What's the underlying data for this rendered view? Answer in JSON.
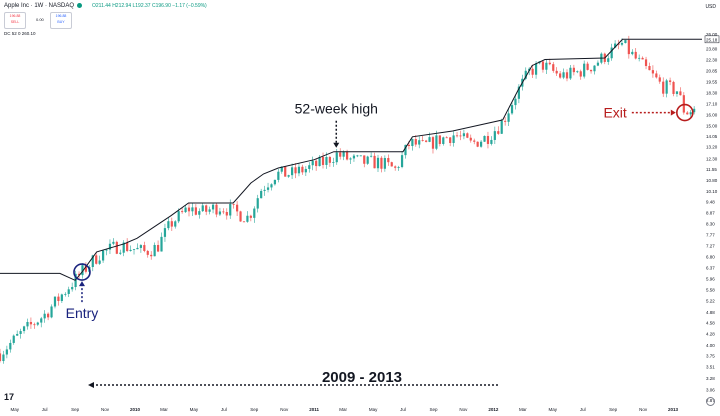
{
  "header": {
    "symbol": "Apple Inc · 1W · NASDAQ",
    "ohlc": "O211.44 H212.94 L192.37 C196.90 −1.17 (−0.59%)",
    "sell_price": "196.88",
    "sell_label": "SELL",
    "spread": "0.00",
    "buy_price": "196.88",
    "buy_label": "BUY",
    "indicator": "DC 52 0  260.10",
    "currency": "USD"
  },
  "branding": {
    "logo_text": "17"
  },
  "chart_data": {
    "type": "candlestick",
    "title": "",
    "x_ticks": [
      "May",
      "Jul",
      "Sep",
      "Nov",
      "2010",
      "Mar",
      "May",
      "Jul",
      "Sep",
      "Nov",
      "2011",
      "Mar",
      "May",
      "Jul",
      "Sep",
      "Nov",
      "2012",
      "Mar",
      "May",
      "Jul",
      "Sep",
      "Nov",
      "2013"
    ],
    "y_ticks": [
      2.87,
      3.06,
      3.28,
      3.51,
      3.75,
      4.0,
      4.28,
      4.58,
      4.88,
      5.22,
      5.58,
      5.96,
      6.37,
      6.8,
      7.27,
      7.77,
      8.3,
      8.87,
      9.48,
      10.1,
      10.8,
      11.55,
      12.3,
      13.2,
      14.05,
      15.0,
      16.0,
      17.1,
      18.3,
      19.55,
      20.85,
      22.3,
      23.8,
      25.4,
      26.0
    ],
    "ylim": [
      2.87,
      26.0
    ],
    "y_scale": "log",
    "price_label": "25.18",
    "channel_line": {
      "name": "52-week high",
      "points": [
        [
          "2009-04-01",
          6.15
        ],
        [
          "2009-08-01",
          6.15
        ],
        [
          "2009-09-01",
          5.9
        ],
        [
          "2009-09-15",
          6.2
        ],
        [
          "2009-10-15",
          7.0
        ],
        [
          "2009-12-10",
          7.35
        ],
        [
          "2010-01-05",
          7.6
        ],
        [
          "2010-03-15",
          8.7
        ],
        [
          "2010-04-20",
          9.4
        ],
        [
          "2010-07-20",
          9.4
        ],
        [
          "2010-08-25",
          10.6
        ],
        [
          "2010-09-20",
          11.2
        ],
        [
          "2010-10-20",
          11.6
        ],
        [
          "2011-01-01",
          12.2
        ],
        [
          "2011-02-10",
          12.8
        ],
        [
          "2011-07-01",
          12.8
        ],
        [
          "2011-07-20",
          14.0
        ],
        [
          "2011-10-10",
          14.5
        ],
        [
          "2012-01-20",
          15.5
        ],
        [
          "2012-02-20",
          18.5
        ],
        [
          "2012-03-20",
          21.5
        ],
        [
          "2012-04-15",
          22.3
        ],
        [
          "2012-08-15",
          22.5
        ],
        [
          "2012-09-20",
          25.18
        ],
        [
          "2013-03-01",
          25.18
        ]
      ]
    },
    "candles": {
      "description": "weekly OHLC",
      "start": "2009-04-01",
      "end": "2013-02-15",
      "path_points": [
        [
          "2009-04-01",
          3.8
        ],
        [
          "2009-05-15",
          4.3
        ],
        [
          "2009-07-01",
          4.8
        ],
        [
          "2009-08-15",
          5.6
        ],
        [
          "2009-09-15",
          6.2
        ],
        [
          "2009-10-20",
          6.9
        ],
        [
          "2009-12-01",
          7.3
        ],
        [
          "2010-01-20",
          7.0
        ],
        [
          "2010-02-15",
          7.2
        ],
        [
          "2010-03-15",
          8.3
        ],
        [
          "2010-04-20",
          9.1
        ],
        [
          "2010-05-20",
          8.9
        ],
        [
          "2010-06-20",
          9.2
        ],
        [
          "2010-07-15",
          9.0
        ],
        [
          "2010-08-20",
          8.6
        ],
        [
          "2010-09-15",
          10.2
        ],
        [
          "2010-10-15",
          11.2
        ],
        [
          "2010-11-15",
          11.2
        ],
        [
          "2010-12-20",
          11.6
        ],
        [
          "2011-01-20",
          12.0
        ],
        [
          "2011-02-15",
          12.6
        ],
        [
          "2011-03-15",
          12.2
        ],
        [
          "2011-04-15",
          12.0
        ],
        [
          "2011-05-15",
          12.0
        ],
        [
          "2011-06-15",
          11.5
        ],
        [
          "2011-07-15",
          13.5
        ],
        [
          "2011-08-10",
          13.2
        ],
        [
          "2011-09-15",
          13.8
        ],
        [
          "2011-10-15",
          14.2
        ],
        [
          "2011-11-15",
          13.4
        ],
        [
          "2011-12-20",
          14.0
        ],
        [
          "2012-01-20",
          15.3
        ],
        [
          "2012-02-15",
          18.0
        ],
        [
          "2012-03-15",
          20.8
        ],
        [
          "2012-04-10",
          21.6
        ],
        [
          "2012-05-15",
          20.2
        ],
        [
          "2012-06-15",
          20.5
        ],
        [
          "2012-07-20",
          21.5
        ],
        [
          "2012-08-20",
          23.0
        ],
        [
          "2012-09-20",
          24.5
        ],
        [
          "2012-10-15",
          22.5
        ],
        [
          "2012-11-15",
          20.5
        ],
        [
          "2012-12-10",
          19.0
        ],
        [
          "2013-01-10",
          18.5
        ],
        [
          "2013-01-25",
          16.2
        ],
        [
          "2013-02-15",
          16.6
        ]
      ]
    },
    "annotations": {
      "entry": {
        "text": "Entry",
        "x": "2009-09-15",
        "y": 6.2
      },
      "exit": {
        "text": "Exit",
        "x": "2013-01-25",
        "y": 16.2
      },
      "peak": {
        "text": "52-week high",
        "x": "2011-02-15",
        "y": 12.8
      },
      "period": {
        "text": "2009 - 2013"
      }
    }
  }
}
